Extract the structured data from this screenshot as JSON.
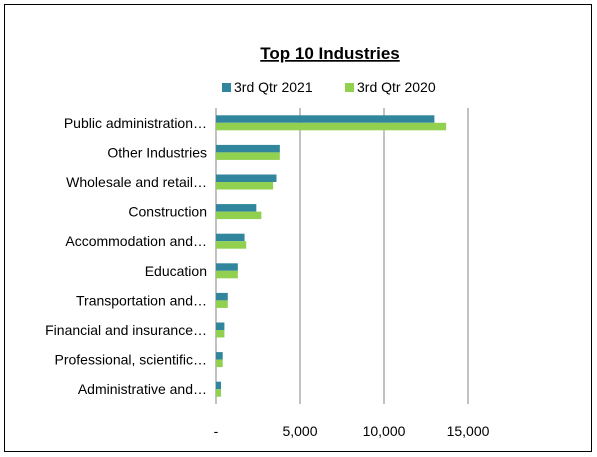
{
  "chart_data": {
    "type": "bar",
    "orientation": "horizontal",
    "title": "Top 10 Industries",
    "xlabel": "",
    "ylabel": "",
    "categories": [
      "Public administration…",
      "Other Industries",
      "Wholesale and retail…",
      "Construction",
      "Accommodation and…",
      "Education",
      "Transportation and…",
      "Financial and insurance…",
      "Professional, scientific…",
      "Administrative and…"
    ],
    "series": [
      {
        "name": "3rd Qtr 2021",
        "color": "#31859C",
        "values": [
          13000,
          3800,
          3600,
          2400,
          1700,
          1300,
          700,
          500,
          400,
          300
        ]
      },
      {
        "name": "3rd Qtr 2020",
        "color": "#92D050",
        "values": [
          13700,
          3800,
          3400,
          2700,
          1800,
          1300,
          700,
          500,
          400,
          300
        ]
      }
    ],
    "xlim": [
      0,
      15000
    ],
    "xticks": [
      0,
      5000,
      10000,
      15000
    ],
    "xtick_labels": [
      "-",
      "5,000",
      "10,000",
      "15,000"
    ],
    "grid": "vertical",
    "legend_position": "top"
  }
}
